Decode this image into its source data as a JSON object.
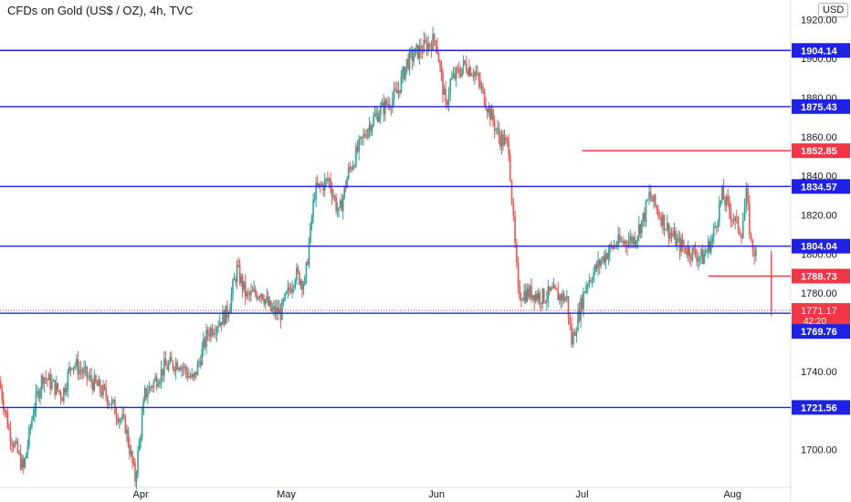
{
  "title": "CFDs on Gold (US$ / OZ), 4h, TVC",
  "currency_button": "USD",
  "colors": {
    "up": "#26a69a",
    "down": "#ef5350",
    "support_line": "#1e22e6",
    "resistance_line": "#f23645",
    "axis_text": "#131722"
  },
  "chart_data": {
    "type": "candlestick",
    "title": "CFDs on Gold (US$ / OZ), 4h, TVC",
    "ylim": [
      1683,
      1922
    ],
    "y_ticks": [
      1700,
      1720,
      1740,
      1760,
      1780,
      1800,
      1820,
      1840,
      1860,
      1880,
      1900,
      1920
    ],
    "y_tick_labels": [
      "1700.00",
      "1720.00",
      "1740.00",
      "1760.00",
      "1780.00",
      "1800.00",
      "1820.00",
      "1840.00",
      "1860.00",
      "1880.00",
      "1900.00",
      "1920.00"
    ],
    "x_range": [
      "2021-03-03",
      "2021-08-13"
    ],
    "x_ticks": [
      {
        "date": "2021-04-01",
        "label": "Apr"
      },
      {
        "date": "2021-05-01",
        "label": "May"
      },
      {
        "date": "2021-06-01",
        "label": "Jun"
      },
      {
        "date": "2021-07-01",
        "label": "Jul"
      },
      {
        "date": "2021-08-01",
        "label": "Aug"
      }
    ],
    "price_path": [
      [
        "2021-03-03",
        1735
      ],
      [
        "2021-03-05",
        1710
      ],
      [
        "2021-03-08",
        1690
      ],
      [
        "2021-03-10",
        1720
      ],
      [
        "2021-03-12",
        1738
      ],
      [
        "2021-03-16",
        1728
      ],
      [
        "2021-03-18",
        1745
      ],
      [
        "2021-03-22",
        1735
      ],
      [
        "2021-03-25",
        1728
      ],
      [
        "2021-03-29",
        1712
      ],
      [
        "2021-03-31",
        1685
      ],
      [
        "2021-04-02",
        1728
      ],
      [
        "2021-04-06",
        1742
      ],
      [
        "2021-04-09",
        1745
      ],
      [
        "2021-04-12",
        1735
      ],
      [
        "2021-04-15",
        1760
      ],
      [
        "2021-04-19",
        1770
      ],
      [
        "2021-04-21",
        1792
      ],
      [
        "2021-04-23",
        1778
      ],
      [
        "2021-04-26",
        1781
      ],
      [
        "2021-04-28",
        1771
      ],
      [
        "2021-04-30",
        1770
      ],
      [
        "2021-05-03",
        1790
      ],
      [
        "2021-05-05",
        1785
      ],
      [
        "2021-05-07",
        1832
      ],
      [
        "2021-05-10",
        1838
      ],
      [
        "2021-05-12",
        1820
      ],
      [
        "2021-05-14",
        1842
      ],
      [
        "2021-05-18",
        1865
      ],
      [
        "2021-05-20",
        1872
      ],
      [
        "2021-05-24",
        1882
      ],
      [
        "2021-05-26",
        1898
      ],
      [
        "2021-05-28",
        1903
      ],
      [
        "2021-06-01",
        1910
      ],
      [
        "2021-06-03",
        1875
      ],
      [
        "2021-06-04",
        1888
      ],
      [
        "2021-06-07",
        1897
      ],
      [
        "2021-06-09",
        1893
      ],
      [
        "2021-06-11",
        1880
      ],
      [
        "2021-06-14",
        1860
      ],
      [
        "2021-06-16",
        1855
      ],
      [
        "2021-06-17",
        1815
      ],
      [
        "2021-06-18",
        1780
      ],
      [
        "2021-06-21",
        1780
      ],
      [
        "2021-06-23",
        1778
      ],
      [
        "2021-06-25",
        1780
      ],
      [
        "2021-06-28",
        1777
      ],
      [
        "2021-06-29",
        1755
      ],
      [
        "2021-06-30",
        1765
      ],
      [
        "2021-07-02",
        1785
      ],
      [
        "2021-07-06",
        1800
      ],
      [
        "2021-07-08",
        1805
      ],
      [
        "2021-07-12",
        1808
      ],
      [
        "2021-07-14",
        1820
      ],
      [
        "2021-07-15",
        1830
      ],
      [
        "2021-07-19",
        1812
      ],
      [
        "2021-07-21",
        1805
      ],
      [
        "2021-07-23",
        1802
      ],
      [
        "2021-07-26",
        1798
      ],
      [
        "2021-07-28",
        1808
      ],
      [
        "2021-07-30",
        1830
      ],
      [
        "2021-08-02",
        1815
      ],
      [
        "2021-08-03",
        1812
      ],
      [
        "2021-08-04",
        1830
      ],
      [
        "2021-08-05",
        1805
      ],
      [
        "2021-08-06",
        1800
      ]
    ],
    "final_drop": {
      "date": "2021-08-09",
      "open": 1800,
      "low": 1768,
      "close": 1771.17
    },
    "horizontal_levels": [
      {
        "value": 1904.14,
        "label": "1904.14",
        "color": "#1e22e6",
        "from": "2021-03-03"
      },
      {
        "value": 1875.43,
        "label": "1875.43",
        "color": "#1e22e6",
        "from": "2021-03-03"
      },
      {
        "value": 1852.85,
        "label": "1852.85",
        "color": "#f23645",
        "from": "2021-07-01"
      },
      {
        "value": 1834.57,
        "label": "1834.57",
        "color": "#1e22e6",
        "from": "2021-03-03"
      },
      {
        "value": 1804.04,
        "label": "1804.04",
        "color": "#1e22e6",
        "from": "2021-03-03"
      },
      {
        "value": 1788.73,
        "label": "1788.73",
        "color": "#f23645",
        "from": "2021-07-27"
      },
      {
        "value": 1769.76,
        "label": "1769.76",
        "color": "#1e22e6",
        "from": "2021-03-03"
      },
      {
        "value": 1721.56,
        "label": "1721.56",
        "color": "#1e22e6",
        "from": "2021-03-03"
      }
    ],
    "current_price": {
      "value": 1771.17,
      "label": "1771.17",
      "countdown": "42:20",
      "color": "#f23645"
    }
  }
}
